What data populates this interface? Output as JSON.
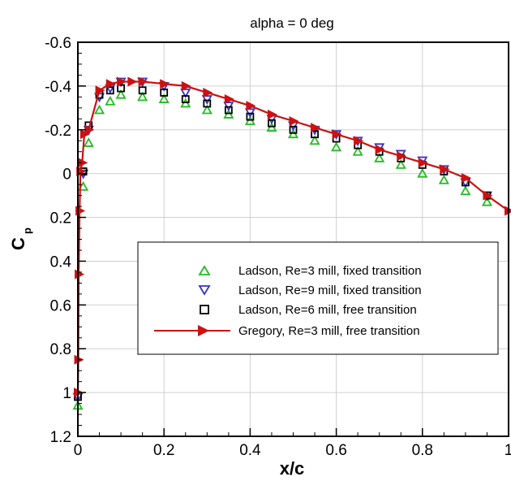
{
  "chart_data": {
    "type": "scatter",
    "title": "alpha = 0 deg",
    "xlabel": "x/c",
    "ylabel": "C",
    "ylabel_sub": "p",
    "xlim": [
      0,
      1
    ],
    "ylim": [
      -0.6,
      1.2
    ],
    "y_inverted": true,
    "grid": true,
    "legend_position": "center-right",
    "x_ticks": [
      {
        "value": 0,
        "label": "0"
      },
      {
        "value": 0.2,
        "label": "0.2"
      },
      {
        "value": 0.4,
        "label": "0.4"
      },
      {
        "value": 0.6,
        "label": "0.6"
      },
      {
        "value": 0.8,
        "label": "0.8"
      },
      {
        "value": 1,
        "label": "1"
      }
    ],
    "y_ticks": [
      {
        "value": -0.6,
        "label": "-0.6"
      },
      {
        "value": -0.4,
        "label": "-0.4"
      },
      {
        "value": -0.2,
        "label": "-0.2"
      },
      {
        "value": 0,
        "label": "0"
      },
      {
        "value": 0.2,
        "label": "0.2"
      },
      {
        "value": 0.4,
        "label": "0.4"
      },
      {
        "value": 0.6,
        "label": "0.6"
      },
      {
        "value": 0.8,
        "label": "0.8"
      },
      {
        "value": 1,
        "label": "1"
      },
      {
        "value": 1.2,
        "label": "1.2"
      }
    ],
    "series": [
      {
        "name": "Ladson, Re=3 mill, fixed transition",
        "marker": "triangle-up",
        "color": "#22bb22",
        "x": [
          0,
          0.0125,
          0.025,
          0.05,
          0.075,
          0.1,
          0.15,
          0.2,
          0.25,
          0.3,
          0.35,
          0.4,
          0.45,
          0.5,
          0.55,
          0.6,
          0.65,
          0.7,
          0.75,
          0.8,
          0.85,
          0.9,
          0.95
        ],
        "y": [
          1.06,
          0.06,
          -0.14,
          -0.29,
          -0.33,
          -0.36,
          -0.35,
          -0.34,
          -0.32,
          -0.29,
          -0.27,
          -0.24,
          -0.21,
          -0.18,
          -0.15,
          -0.12,
          -0.1,
          -0.07,
          -0.04,
          0,
          0.03,
          0.08,
          0.13
        ]
      },
      {
        "name": "Ladson, Re=9 mill, fixed transition",
        "marker": "triangle-down",
        "color": "#3333cc",
        "x": [
          0,
          0.0125,
          0.025,
          0.05,
          0.075,
          0.1,
          0.15,
          0.2,
          0.25,
          0.3,
          0.35,
          0.4,
          0.45,
          0.5,
          0.55,
          0.6,
          0.65,
          0.7,
          0.75,
          0.8,
          0.85,
          0.9,
          0.95
        ],
        "y": [
          1.02,
          0.0,
          -0.2,
          -0.35,
          -0.39,
          -0.42,
          -0.42,
          -0.4,
          -0.37,
          -0.34,
          -0.31,
          -0.28,
          -0.25,
          -0.22,
          -0.2,
          -0.18,
          -0.15,
          -0.12,
          -0.09,
          -0.06,
          -0.02,
          0.04,
          0.1
        ]
      },
      {
        "name": "Ladson, Re=6 mill, free transition",
        "marker": "square",
        "color": "#000000",
        "x": [
          0,
          0.0125,
          0.025,
          0.05,
          0.075,
          0.1,
          0.15,
          0.2,
          0.25,
          0.3,
          0.35,
          0.4,
          0.45,
          0.5,
          0.55,
          0.6,
          0.65,
          0.7,
          0.75,
          0.8,
          0.85,
          0.9,
          0.95
        ],
        "y": [
          1.02,
          -0.01,
          -0.22,
          -0.36,
          -0.38,
          -0.39,
          -0.38,
          -0.37,
          -0.34,
          -0.32,
          -0.29,
          -0.26,
          -0.23,
          -0.2,
          -0.18,
          -0.16,
          -0.13,
          -0.1,
          -0.07,
          -0.04,
          -0.01,
          0.04,
          0.1
        ]
      },
      {
        "name": "Gregory, Re=3 mill, free transition",
        "marker": "triangle-right-line",
        "color": "#cc1111",
        "x": [
          0.0,
          0.001,
          0.002,
          0.004,
          0.006,
          0.01,
          0.015,
          0.025,
          0.05,
          0.075,
          0.1,
          0.125,
          0.15,
          0.2,
          0.25,
          0.3,
          0.35,
          0.4,
          0.45,
          0.5,
          0.55,
          0.6,
          0.65,
          0.7,
          0.75,
          0.8,
          0.85,
          0.9,
          0.95,
          1.0
        ],
        "y": [
          1.0,
          0.85,
          0.46,
          0.17,
          -0.01,
          -0.05,
          -0.18,
          -0.2,
          -0.38,
          -0.41,
          -0.42,
          -0.42,
          -0.42,
          -0.41,
          -0.4,
          -0.37,
          -0.34,
          -0.31,
          -0.27,
          -0.24,
          -0.21,
          -0.18,
          -0.15,
          -0.11,
          -0.08,
          -0.05,
          -0.02,
          0.02,
          0.1,
          0.17
        ]
      }
    ]
  }
}
